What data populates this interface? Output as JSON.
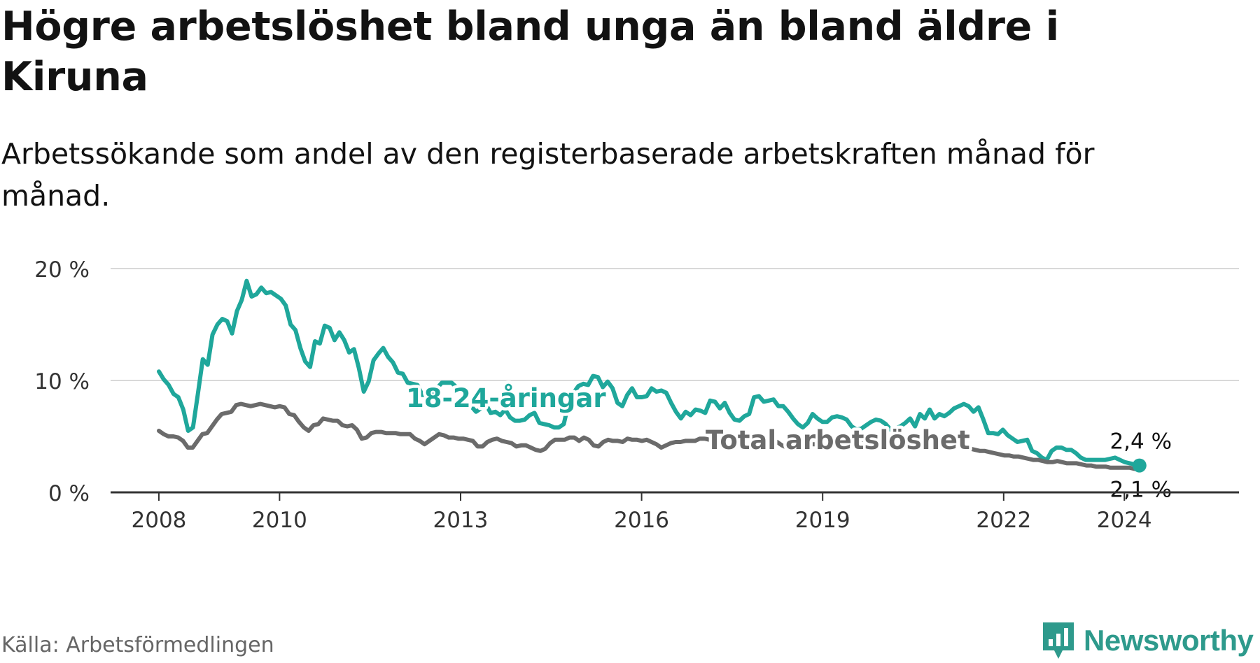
{
  "header": {
    "title": "Högre arbetslöshet bland unga än bland äldre i Kiruna",
    "subtitle": "Arbetssökande som andel av den registerbaserade arbetskraften månad för månad."
  },
  "footer": {
    "source": "Källa: Arbetsförmedlingen",
    "brand": "Newsworthy"
  },
  "colors": {
    "youth": "#1fa79b",
    "total": "#6b6b6b",
    "grid": "#d9d9d9",
    "axis": "#333333",
    "brand": "#2e9a8c"
  },
  "chart_data": {
    "type": "line",
    "x_start": 2008,
    "x_end": 2024.25,
    "xlim": [
      2007.2,
      2025.9
    ],
    "ylim": [
      0,
      20
    ],
    "y_ticks": [
      {
        "value": 0,
        "label": "0 %"
      },
      {
        "value": 10,
        "label": "10 %"
      },
      {
        "value": 20,
        "label": "20 %"
      }
    ],
    "x_ticks": [
      {
        "value": 2008,
        "label": "2008"
      },
      {
        "value": 2010,
        "label": "2010"
      },
      {
        "value": 2013,
        "label": "2013"
      },
      {
        "value": 2016,
        "label": "2016"
      },
      {
        "value": 2019,
        "label": "2019"
      },
      {
        "value": 2022,
        "label": "2022"
      },
      {
        "value": 2024,
        "label": "2024"
      }
    ],
    "series": [
      {
        "name": "18-24-åringar",
        "color": "#1fa79b",
        "label": "18-24-åringar",
        "end_label": "2,4 %",
        "values": [
          10.8,
          10.1,
          9.6,
          8.8,
          8.5,
          7.4,
          5.5,
          5.8,
          8.8,
          11.9,
          11.4,
          14.1,
          15.0,
          15.5,
          15.3,
          14.2,
          16.2,
          17.2,
          18.9,
          17.5,
          17.7,
          18.3,
          17.8,
          17.9,
          17.6,
          17.3,
          16.7,
          15.0,
          14.5,
          12.9,
          11.7,
          11.2,
          13.5,
          13.3,
          14.9,
          14.7,
          13.6,
          14.3,
          13.6,
          12.5,
          12.8,
          11.1,
          9.0,
          9.9,
          11.8,
          12.4,
          12.9,
          12.1,
          11.6,
          10.7,
          10.6,
          9.8,
          9.7,
          9.6,
          8.7,
          8.7,
          8.9,
          9.3,
          9.8,
          9.8,
          9.8,
          9.4,
          9.1,
          8.1,
          7.7,
          7.2,
          7.5,
          7.9,
          7.1,
          7.2,
          6.9,
          7.4,
          6.7,
          6.4,
          6.4,
          6.5,
          6.9,
          7.1,
          6.2,
          6.1,
          6.0,
          5.8,
          5.8,
          6.1,
          8.0,
          8.9,
          9.5,
          9.7,
          9.6,
          10.4,
          10.3,
          9.4,
          9.9,
          9.3,
          8.0,
          7.7,
          8.7,
          9.3,
          8.5,
          8.5,
          8.6,
          9.3,
          9.0,
          9.1,
          8.9,
          8.0,
          7.2,
          6.6,
          7.2,
          6.9,
          7.4,
          7.3,
          7.1,
          8.2,
          8.1,
          7.5,
          8.0,
          7.1,
          6.5,
          6.4,
          6.8,
          7.0,
          8.5,
          8.6,
          8.1,
          8.2,
          8.3,
          7.7,
          7.7,
          7.2,
          6.6,
          6.1,
          5.8,
          6.2,
          7.0,
          6.6,
          6.3,
          6.3,
          6.7,
          6.8,
          6.7,
          6.5,
          5.9,
          5.6,
          5.7,
          6.0,
          6.3,
          6.5,
          6.4,
          6.1,
          5.6,
          5.7,
          5.9,
          6.2,
          6.6,
          5.9,
          7.0,
          6.6,
          7.4,
          6.6,
          7.0,
          6.8,
          7.1,
          7.5,
          7.7,
          7.9,
          7.7,
          7.2,
          7.6,
          6.5,
          5.3,
          5.3,
          5.2,
          5.6,
          5.1,
          4.8,
          4.5,
          4.6,
          4.7,
          3.7,
          3.5,
          3.1,
          2.9,
          3.7,
          4.0,
          4.0,
          3.8,
          3.8,
          3.5,
          3.1,
          2.9,
          2.9,
          2.9,
          2.9,
          2.9,
          3.0,
          3.1,
          2.9,
          2.7,
          2.6,
          2.5,
          2.4
        ]
      },
      {
        "name": "Total arbetslöshet",
        "color": "#6b6b6b",
        "label": "Total arbetslöshet",
        "end_label": "2,1 %",
        "values": [
          5.5,
          5.2,
          5.0,
          5.0,
          4.9,
          4.6,
          4.0,
          4.0,
          4.6,
          5.2,
          5.3,
          5.9,
          6.5,
          7.0,
          7.1,
          7.2,
          7.8,
          7.9,
          7.8,
          7.7,
          7.8,
          7.9,
          7.8,
          7.7,
          7.6,
          7.7,
          7.6,
          7.0,
          6.9,
          6.3,
          5.8,
          5.5,
          6.0,
          6.1,
          6.6,
          6.5,
          6.4,
          6.4,
          6.0,
          5.9,
          6.0,
          5.6,
          4.8,
          4.9,
          5.3,
          5.4,
          5.4,
          5.3,
          5.3,
          5.3,
          5.2,
          5.2,
          5.2,
          4.8,
          4.6,
          4.3,
          4.6,
          4.9,
          5.2,
          5.1,
          4.9,
          4.9,
          4.8,
          4.8,
          4.7,
          4.6,
          4.1,
          4.1,
          4.5,
          4.7,
          4.8,
          4.6,
          4.5,
          4.4,
          4.1,
          4.2,
          4.2,
          4.0,
          3.8,
          3.7,
          3.9,
          4.4,
          4.7,
          4.7,
          4.7,
          4.9,
          4.9,
          4.6,
          4.9,
          4.7,
          4.2,
          4.1,
          4.5,
          4.7,
          4.6,
          4.6,
          4.5,
          4.8,
          4.7,
          4.7,
          4.6,
          4.7,
          4.5,
          4.3,
          4.0,
          4.2,
          4.4,
          4.5,
          4.5,
          4.6,
          4.6,
          4.6,
          4.8,
          4.8,
          4.7,
          4.7,
          4.6,
          4.3,
          4.2,
          4.3,
          4.5,
          4.8,
          4.9,
          4.9,
          4.9,
          4.7,
          4.7,
          4.7,
          4.5,
          4.2,
          4.0,
          4.1,
          4.4,
          4.5,
          4.4,
          4.3,
          4.3,
          4.4,
          4.4,
          4.5,
          4.5,
          4.1,
          4.0,
          4.2,
          4.5,
          4.7,
          4.7,
          4.6,
          4.4,
          4.4,
          4.6,
          4.8,
          4.7,
          4.5,
          4.7,
          4.6,
          4.6,
          4.5,
          4.6,
          4.6,
          4.6,
          4.6,
          4.7,
          4.6,
          4.5,
          4.4,
          4.3,
          4.1,
          3.9,
          3.8,
          3.7,
          3.7,
          3.6,
          3.5,
          3.4,
          3.3,
          3.3,
          3.2,
          3.2,
          3.1,
          3.0,
          2.9,
          2.9,
          2.8,
          2.7,
          2.7,
          2.8,
          2.7,
          2.6,
          2.6,
          2.6,
          2.5,
          2.4,
          2.4,
          2.3,
          2.3,
          2.3,
          2.2,
          2.2,
          2.2,
          2.2,
          2.2,
          2.1,
          2.1
        ]
      }
    ]
  }
}
